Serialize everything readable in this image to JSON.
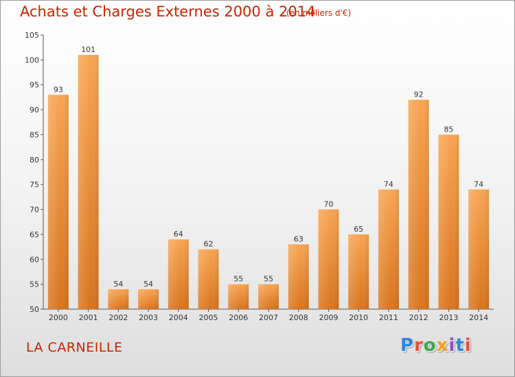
{
  "header": {
    "title": "Achats et Charges Externes 2000 à 2014",
    "unit": "(en milliers d'€)"
  },
  "footer": {
    "place": "LA CARNEILLE",
    "logo_text": "Proxiti",
    "logo_colors": [
      "#2e86de",
      "#e84c3d",
      "#3aa84a",
      "#f0a020",
      "#8a4fc0",
      "#2e86de",
      "#e84c3d"
    ]
  },
  "colors": {
    "bar_top": "#f8a552",
    "bar_bottom": "#d8741d",
    "title": "#cc2200"
  },
  "chart_data": {
    "type": "bar",
    "title": "Achats et Charges Externes 2000 à 2014",
    "xlabel": "",
    "ylabel": "",
    "categories": [
      "2000",
      "2001",
      "2002",
      "2003",
      "2004",
      "2005",
      "2006",
      "2007",
      "2008",
      "2009",
      "2010",
      "2011",
      "2012",
      "2013",
      "2014"
    ],
    "values": [
      93,
      101,
      54,
      54,
      64,
      62,
      55,
      55,
      63,
      70,
      65,
      74,
      92,
      85,
      74
    ],
    "value_labels": [
      "93",
      "101",
      "54",
      "54",
      "64",
      "62",
      "55",
      "55",
      "63",
      "70",
      "65",
      "74",
      "92",
      "85",
      "74"
    ],
    "ylim": [
      50,
      105
    ],
    "yticks": [
      50,
      55,
      60,
      65,
      70,
      75,
      80,
      85,
      90,
      95,
      100,
      105
    ],
    "grid": false,
    "legend": "none"
  }
}
